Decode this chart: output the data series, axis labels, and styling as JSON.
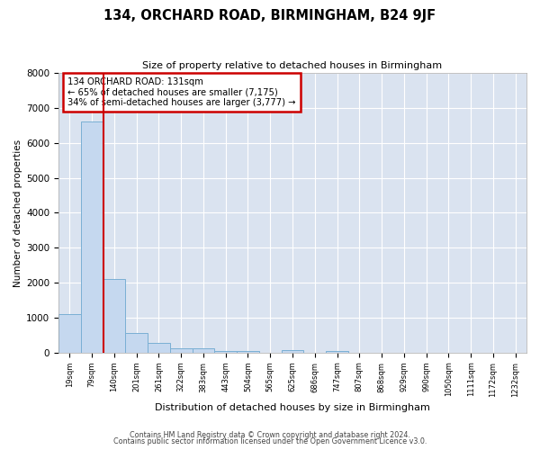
{
  "title": "134, ORCHARD ROAD, BIRMINGHAM, B24 9JF",
  "subtitle": "Size of property relative to detached houses in Birmingham",
  "xlabel": "Distribution of detached houses by size in Birmingham",
  "ylabel": "Number of detached properties",
  "bar_labels": [
    "19sqm",
    "79sqm",
    "140sqm",
    "201sqm",
    "261sqm",
    "322sqm",
    "383sqm",
    "443sqm",
    "504sqm",
    "565sqm",
    "625sqm",
    "686sqm",
    "747sqm",
    "807sqm",
    "868sqm",
    "929sqm",
    "990sqm",
    "1050sqm",
    "1111sqm",
    "1172sqm",
    "1232sqm"
  ],
  "bar_values": [
    1100,
    6600,
    2100,
    550,
    270,
    130,
    130,
    50,
    50,
    0,
    80,
    0,
    50,
    0,
    0,
    0,
    0,
    0,
    0,
    0,
    0
  ],
  "bar_color": "#c5d8ef",
  "bar_edge_color": "#7aafd4",
  "vline_index": 2,
  "annotation_title": "134 ORCHARD ROAD: 131sqm",
  "annotation_line1": "← 65% of detached houses are smaller (7,175)",
  "annotation_line2": "34% of semi-detached houses are larger (3,777) →",
  "annotation_box_color": "#ffffff",
  "annotation_box_edge": "#cc0000",
  "vline_color": "#cc0000",
  "ylim": [
    0,
    8000
  ],
  "yticks": [
    0,
    1000,
    2000,
    3000,
    4000,
    5000,
    6000,
    7000,
    8000
  ],
  "footer1": "Contains HM Land Registry data © Crown copyright and database right 2024.",
  "footer2": "Contains public sector information licensed under the Open Government Licence v3.0.",
  "background_color": "#ffffff",
  "grid_color": "#dae3f0"
}
